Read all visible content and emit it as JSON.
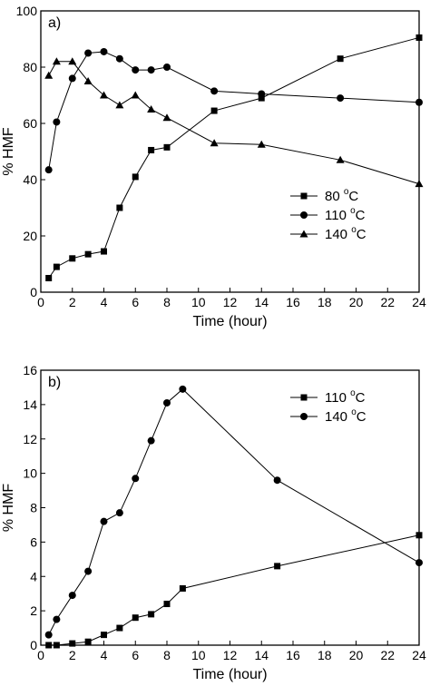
{
  "chart_data": [
    {
      "type": "line",
      "panel_label": "a)",
      "xlabel": "Time (hour)",
      "ylabel": "% HMF",
      "xlim": [
        0,
        24
      ],
      "ylim": [
        0,
        100
      ],
      "xticks": [
        0,
        2,
        4,
        6,
        8,
        10,
        12,
        14,
        16,
        18,
        20,
        22,
        24
      ],
      "yticks": [
        0,
        20,
        40,
        60,
        80,
        100
      ],
      "grid": false,
      "legend_position": "center-right",
      "series": [
        {
          "name": "80 °C",
          "legend_main": "80 ",
          "legend_sup": "o",
          "legend_suffix": "C",
          "marker": "square",
          "x": [
            0.5,
            1,
            2,
            3,
            4,
            5,
            6,
            7,
            8,
            11,
            14,
            19,
            24
          ],
          "y": [
            5,
            9,
            12,
            13.5,
            14.5,
            30,
            41,
            50.5,
            51.5,
            64.5,
            69,
            83,
            90.5
          ]
        },
        {
          "name": "110 °C",
          "legend_main": "110 ",
          "legend_sup": "o",
          "legend_suffix": "C",
          "marker": "circle",
          "x": [
            0.5,
            1,
            2,
            3,
            4,
            5,
            6,
            7,
            8,
            11,
            14,
            19,
            24
          ],
          "y": [
            43.5,
            60.5,
            76,
            85,
            85.5,
            83,
            79,
            79,
            80,
            71.5,
            70.5,
            69,
            67.5
          ]
        },
        {
          "name": "140 °C",
          "legend_main": "140 ",
          "legend_sup": "o",
          "legend_suffix": "C",
          "marker": "triangle",
          "x": [
            0.5,
            1,
            2,
            3,
            4,
            5,
            6,
            7,
            8,
            11,
            14,
            19,
            24
          ],
          "y": [
            77,
            82,
            82,
            75,
            70,
            66.5,
            70,
            65,
            62,
            53,
            52.5,
            47,
            38.5
          ]
        }
      ]
    },
    {
      "type": "line",
      "panel_label": "b)",
      "xlabel": "Time (hour)",
      "ylabel": "% HMF",
      "xlim": [
        0,
        24
      ],
      "ylim": [
        0,
        16
      ],
      "xticks": [
        0,
        2,
        4,
        6,
        8,
        10,
        12,
        14,
        16,
        18,
        20,
        22,
        24
      ],
      "yticks": [
        0,
        2,
        4,
        6,
        8,
        10,
        12,
        14,
        16
      ],
      "grid": false,
      "legend_position": "top-right",
      "series": [
        {
          "name": "110 °C",
          "legend_main": "110 ",
          "legend_sup": "o",
          "legend_suffix": "C",
          "marker": "square",
          "x": [
            0.5,
            1,
            2,
            3,
            4,
            5,
            6,
            7,
            8,
            9,
            15,
            24
          ],
          "y": [
            0,
            0,
            0.1,
            0.2,
            0.6,
            1.0,
            1.6,
            1.8,
            2.4,
            3.3,
            4.6,
            6.4
          ]
        },
        {
          "name": "140 °C",
          "legend_main": "140 ",
          "legend_sup": "o",
          "legend_suffix": "C",
          "marker": "circle",
          "x": [
            0.5,
            1,
            2,
            3,
            4,
            5,
            6,
            7,
            8,
            9,
            15,
            24
          ],
          "y": [
            0.6,
            1.5,
            2.9,
            4.3,
            7.2,
            7.7,
            9.7,
            11.9,
            14.1,
            14.9,
            9.6,
            4.8
          ]
        }
      ]
    }
  ]
}
